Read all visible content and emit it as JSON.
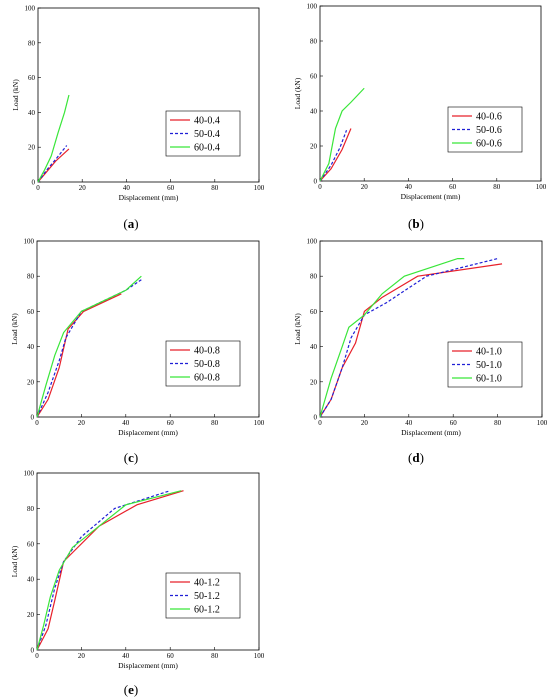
{
  "colors": {
    "red": "#e8202a",
    "blue": "#1f1fd6",
    "green": "#39e639"
  },
  "chart_data": [
    {
      "type": "line",
      "panel_label": "(a)",
      "panel_letter": "a",
      "xlabel": "Displacement (mm)",
      "ylabel": "Load (kN)",
      "xlim": [
        0,
        100
      ],
      "ylim": [
        0,
        100
      ],
      "x_ticks": [
        "0",
        "20",
        "40",
        "60",
        "80",
        "100"
      ],
      "y_ticks": [
        "0",
        "20",
        "40",
        "60",
        "80",
        "100"
      ],
      "legend_position": "right-middle",
      "series": [
        {
          "name": "40-0.4",
          "style": "solid",
          "color_key": "red",
          "points": [
            [
              0,
              0
            ],
            [
              4,
              6
            ],
            [
              8,
              12
            ],
            [
              14,
              19
            ]
          ]
        },
        {
          "name": "50-0.4",
          "style": "dashed",
          "color_key": "blue",
          "points": [
            [
              0,
              0
            ],
            [
              4,
              7
            ],
            [
              8,
              13
            ],
            [
              13,
              21
            ]
          ]
        },
        {
          "name": "60-0.4",
          "style": "solid",
          "color_key": "green",
          "points": [
            [
              0,
              0
            ],
            [
              3,
              7
            ],
            [
              6,
              15
            ],
            [
              9,
              28
            ],
            [
              12,
              40
            ],
            [
              14,
              50
            ]
          ]
        }
      ]
    },
    {
      "type": "line",
      "panel_label": "(b)",
      "panel_letter": "b",
      "xlabel": "Displacement (mm)",
      "ylabel": "Load (kN)",
      "xlim": [
        0,
        100
      ],
      "ylim": [
        0,
        100
      ],
      "x_ticks": [
        "0",
        "20",
        "40",
        "60",
        "80",
        "100"
      ],
      "y_ticks": [
        "0",
        "20",
        "40",
        "60",
        "80",
        "100"
      ],
      "legend_position": "right-middle",
      "series": [
        {
          "name": "40-0.6",
          "style": "solid",
          "color_key": "red",
          "points": [
            [
              0,
              0
            ],
            [
              5,
              7
            ],
            [
              10,
              18
            ],
            [
              14,
              30
            ]
          ]
        },
        {
          "name": "50-0.6",
          "style": "dashed",
          "color_key": "blue",
          "points": [
            [
              0,
              0
            ],
            [
              5,
              9
            ],
            [
              9,
              19
            ],
            [
              12,
              29
            ]
          ]
        },
        {
          "name": "60-0.6",
          "style": "solid",
          "color_key": "green",
          "points": [
            [
              0,
              0
            ],
            [
              4,
              10
            ],
            [
              7,
              30
            ],
            [
              10,
              40
            ],
            [
              14,
              45
            ],
            [
              20,
              53
            ]
          ]
        }
      ]
    },
    {
      "type": "line",
      "panel_label": "(c)",
      "panel_letter": "c",
      "xlabel": "Displacement (mm)",
      "ylabel": "Load (kN)",
      "xlim": [
        0,
        100
      ],
      "ylim": [
        0,
        100
      ],
      "x_ticks": [
        "0",
        "20",
        "40",
        "60",
        "80",
        "100"
      ],
      "y_ticks": [
        "0",
        "20",
        "40",
        "60",
        "80",
        "100"
      ],
      "legend_position": "right-bottom",
      "series": [
        {
          "name": "40-0.8",
          "style": "solid",
          "color_key": "red",
          "points": [
            [
              0,
              0
            ],
            [
              5,
              10
            ],
            [
              10,
              28
            ],
            [
              14,
              50
            ],
            [
              21,
              60
            ],
            [
              38,
              70
            ]
          ]
        },
        {
          "name": "50-0.8",
          "style": "dashed",
          "color_key": "blue",
          "points": [
            [
              0,
              0
            ],
            [
              5,
              14
            ],
            [
              10,
              32
            ],
            [
              13,
              45
            ],
            [
              20,
              60
            ],
            [
              40,
              72
            ],
            [
              47,
              78
            ]
          ]
        },
        {
          "name": "60-0.8",
          "style": "solid",
          "color_key": "green",
          "points": [
            [
              0,
              0
            ],
            [
              4,
              18
            ],
            [
              8,
              35
            ],
            [
              12,
              48
            ],
            [
              20,
              60
            ],
            [
              40,
              72
            ],
            [
              47,
              80
            ]
          ]
        }
      ]
    },
    {
      "type": "line",
      "panel_label": "(d)",
      "panel_letter": "d",
      "xlabel": "Displacement (mm)",
      "ylabel": "Load (kN)",
      "xlim": [
        0,
        100
      ],
      "ylim": [
        0,
        100
      ],
      "x_ticks": [
        "0",
        "20",
        "40",
        "60",
        "80",
        "100"
      ],
      "y_ticks": [
        "0",
        "20",
        "40",
        "60",
        "80",
        "100"
      ],
      "legend_position": "right-bottom",
      "series": [
        {
          "name": "40-1.0",
          "style": "solid",
          "color_key": "red",
          "points": [
            [
              0,
              0
            ],
            [
              5,
              10
            ],
            [
              10,
              28
            ],
            [
              16,
              42
            ],
            [
              20,
              60
            ],
            [
              28,
              68
            ],
            [
              44,
              80
            ],
            [
              82,
              87
            ]
          ]
        },
        {
          "name": "50-1.0",
          "style": "dashed",
          "color_key": "blue",
          "points": [
            [
              0,
              0
            ],
            [
              5,
              10
            ],
            [
              10,
              28
            ],
            [
              14,
              45
            ],
            [
              20,
              58
            ],
            [
              30,
              65
            ],
            [
              48,
              80
            ],
            [
              80,
              90
            ]
          ]
        },
        {
          "name": "60-1.0",
          "style": "solid",
          "color_key": "green",
          "points": [
            [
              0,
              0
            ],
            [
              5,
              22
            ],
            [
              10,
              40
            ],
            [
              13,
              51
            ],
            [
              20,
              58
            ],
            [
              28,
              70
            ],
            [
              38,
              80
            ],
            [
              62,
              90
            ],
            [
              65,
              90
            ]
          ]
        }
      ]
    },
    {
      "type": "line",
      "panel_label": "(e)",
      "panel_letter": "e",
      "xlabel": "Displacement (mm)",
      "ylabel": "Load (kN)",
      "xlim": [
        0,
        100
      ],
      "ylim": [
        0,
        100
      ],
      "x_ticks": [
        "0",
        "20",
        "40",
        "60",
        "80",
        "100"
      ],
      "y_ticks": [
        "0",
        "20",
        "40",
        "60",
        "80",
        "100"
      ],
      "legend_position": "right-middle",
      "series": [
        {
          "name": "40-1.2",
          "style": "solid",
          "color_key": "red",
          "points": [
            [
              0,
              0
            ],
            [
              5,
              12
            ],
            [
              8,
              28
            ],
            [
              12,
              50
            ],
            [
              28,
              70
            ],
            [
              45,
              82
            ],
            [
              66,
              90
            ]
          ]
        },
        {
          "name": "50-1.2",
          "style": "dashed",
          "color_key": "blue",
          "points": [
            [
              0,
              0
            ],
            [
              4,
              14
            ],
            [
              8,
              35
            ],
            [
              12,
              50
            ],
            [
              20,
              64
            ],
            [
              35,
              80
            ],
            [
              60,
              90
            ]
          ]
        },
        {
          "name": "60-1.2",
          "style": "solid",
          "color_key": "green",
          "points": [
            [
              0,
              0
            ],
            [
              3,
              14
            ],
            [
              6,
              30
            ],
            [
              10,
              45
            ],
            [
              16,
              58
            ],
            [
              30,
              72
            ],
            [
              40,
              82
            ],
            [
              65,
              90
            ]
          ]
        }
      ]
    }
  ]
}
